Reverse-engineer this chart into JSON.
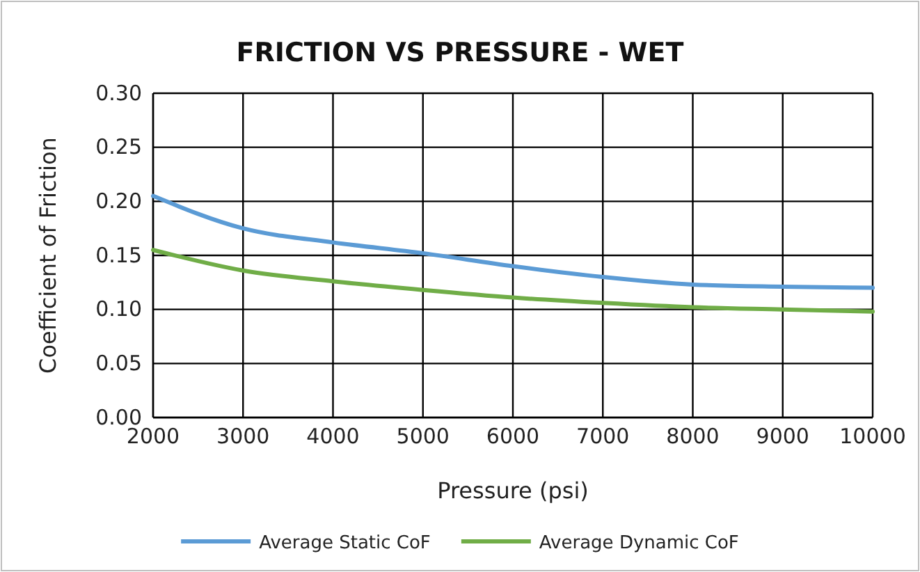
{
  "chart_data": {
    "type": "line",
    "title": "FRICTION VS PRESSURE - WET",
    "xlabel": "Pressure (psi)",
    "ylabel": "Coefficient of Friction",
    "x": [
      2000,
      3000,
      4000,
      5000,
      6000,
      7000,
      8000,
      9000,
      10000
    ],
    "series": [
      {
        "name": "Average Static CoF",
        "color": "#5b9bd5",
        "values": [
          0.205,
          0.175,
          0.162,
          0.152,
          0.14,
          0.13,
          0.123,
          0.121,
          0.12
        ]
      },
      {
        "name": "Average Dynamic CoF",
        "color": "#70ad47",
        "values": [
          0.155,
          0.136,
          0.126,
          0.118,
          0.111,
          0.106,
          0.102,
          0.1,
          0.098
        ]
      }
    ],
    "xlim": [
      2000,
      10000
    ],
    "xticks": [
      2000,
      3000,
      4000,
      5000,
      6000,
      7000,
      8000,
      9000,
      10000
    ],
    "ylim": [
      0,
      0.3
    ],
    "yticks": [
      {
        "value": 0,
        "label": "0.00"
      },
      {
        "value": 0.05,
        "label": "0.05"
      },
      {
        "value": 0.1,
        "label": "0.10"
      },
      {
        "value": 0.15,
        "label": "0.15"
      },
      {
        "value": 0.2,
        "label": "0.20"
      },
      {
        "value": 0.25,
        "label": "0.25"
      },
      {
        "value": 0.3,
        "label": "0.30"
      }
    ],
    "grid": true,
    "legend": "bottom",
    "marker": "none",
    "line_style": "solid"
  }
}
